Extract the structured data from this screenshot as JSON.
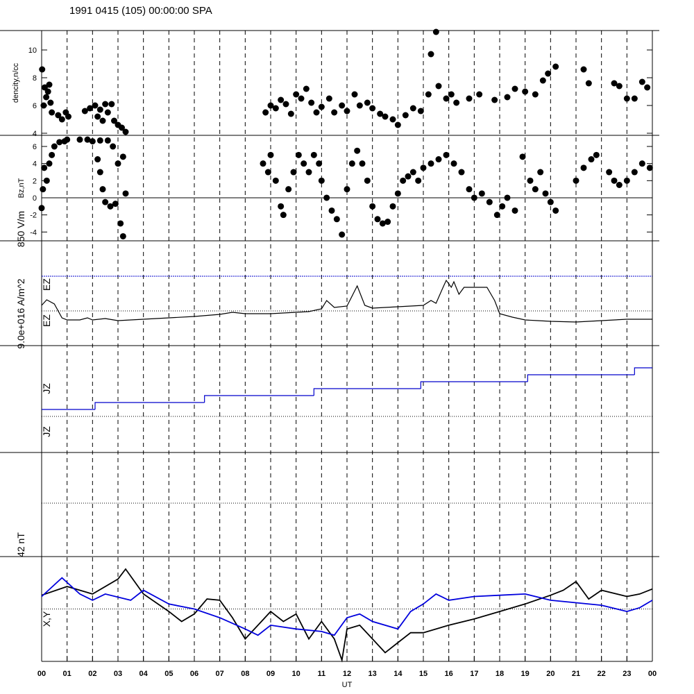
{
  "chart_data": [
    {
      "type": "scatter",
      "title": "1991 0415 (105) 00:00:00 SPA",
      "ylabel": "dencity,n/cc",
      "color": "#000000",
      "x": [
        0.02,
        0.08,
        0.12,
        0.18,
        0.25,
        0.3,
        0.35,
        0.4,
        0.65,
        0.8,
        0.95,
        1.05,
        1.7,
        1.9,
        2.1,
        2.3,
        2.5,
        2.2,
        2.4,
        2.6,
        2.75,
        2.85,
        3.0,
        3.15,
        3.3,
        8.8,
        9.0,
        9.2,
        9.4,
        9.6,
        9.8,
        10.0,
        10.2,
        10.4,
        10.6,
        10.8,
        11.0,
        11.3,
        11.5,
        11.8,
        12.0,
        12.3,
        12.5,
        12.8,
        13.0,
        13.3,
        13.5,
        13.8,
        14.0,
        14.3,
        14.6,
        14.9,
        15.2,
        15.3,
        15.5,
        15.6,
        15.9,
        16.1,
        16.3,
        16.8,
        17.2,
        17.8,
        18.3,
        18.6,
        19.0,
        19.4,
        19.7,
        19.9,
        20.2,
        21.3,
        21.5,
        22.5,
        22.7,
        23.0,
        23.3,
        23.6,
        23.8
      ],
      "values": [
        8.6,
        6.0,
        7.3,
        6.6,
        7.0,
        7.5,
        6.2,
        5.5,
        5.3,
        5.0,
        5.5,
        5.2,
        5.6,
        5.8,
        6.0,
        5.7,
        6.1,
        5.2,
        4.9,
        5.5,
        6.1,
        4.9,
        4.6,
        4.4,
        4.1,
        5.5,
        6.0,
        5.8,
        6.4,
        6.1,
        5.4,
        6.8,
        6.5,
        7.2,
        6.2,
        5.5,
        5.9,
        6.5,
        5.5,
        6.0,
        5.6,
        6.8,
        6.0,
        6.2,
        5.8,
        5.4,
        5.2,
        5.0,
        4.6,
        5.3,
        5.8,
        5.6,
        6.8,
        9.7,
        11.3,
        7.4,
        6.5,
        6.8,
        6.2,
        6.5,
        6.8,
        6.4,
        6.6,
        7.2,
        7.0,
        6.8,
        7.8,
        8.3,
        8.8,
        8.6,
        7.6,
        7.6,
        7.4,
        6.5,
        6.5,
        7.7,
        7.3
      ],
      "xlim": [
        0,
        24
      ],
      "ylim": [
        3.85,
        11.4
      ],
      "yticks": [
        4,
        6,
        8,
        10
      ]
    },
    {
      "type": "scatter",
      "ylabel": "Bz,nT",
      "color": "#000000",
      "x": [
        0,
        0.05,
        0.1,
        0.2,
        0.3,
        0.4,
        0.5,
        0.7,
        0.9,
        1,
        1.5,
        1.8,
        2,
        2.3,
        2.6,
        2.8,
        2.2,
        2.3,
        2.4,
        2.5,
        2.7,
        2.9,
        3,
        3.1,
        3.2,
        3.3,
        3.2,
        8.7,
        8.9,
        9,
        9.2,
        9.4,
        9.5,
        9.7,
        9.9,
        10.1,
        10.3,
        10.5,
        10.7,
        10.9,
        11,
        11.2,
        11.4,
        11.6,
        11.8,
        12,
        12.2,
        12.4,
        12.6,
        12.8,
        13,
        13.2,
        13.4,
        13.6,
        13.8,
        14,
        14.2,
        14.4,
        14.6,
        14.8,
        15,
        15.3,
        15.6,
        15.9,
        16.2,
        16.5,
        16.8,
        17,
        17.3,
        17.6,
        17.9,
        18.1,
        18.3,
        18.6,
        18.9,
        19.2,
        19.4,
        19.6,
        19.8,
        20,
        20.2,
        21,
        21.3,
        21.6,
        21.8,
        22.3,
        22.5,
        22.7,
        23,
        23.3,
        23.6,
        23.9
      ],
      "values": [
        -1.2,
        1,
        3.5,
        2,
        4,
        5,
        6,
        6.5,
        6.6,
        6.8,
        6.8,
        6.8,
        6.6,
        6.7,
        6.7,
        6,
        4.5,
        3,
        1,
        -0.5,
        -1,
        -0.7,
        4,
        -3,
        -4.5,
        0.5,
        4.8,
        4,
        3,
        5,
        2,
        -1,
        -2,
        1,
        3,
        5,
        4,
        3,
        5,
        4,
        2,
        0,
        -1.5,
        -2.5,
        -4.3,
        1,
        4,
        5.5,
        4,
        2,
        -1,
        -2.5,
        -3,
        -2.8,
        -1,
        0.5,
        2,
        2.5,
        3,
        2,
        3.5,
        4,
        4.5,
        5,
        4,
        3,
        1,
        0,
        0.5,
        -0.5,
        -2,
        -1,
        0,
        -1.5,
        4.8,
        2,
        1,
        3,
        0.5,
        -0.5,
        -1.5,
        2,
        3.5,
        4.5,
        5,
        3,
        2,
        1.5,
        2,
        3,
        4,
        3.5
      ],
      "xlim": [
        0,
        24
      ],
      "ylim": [
        -5.03,
        7.3
      ],
      "yticks": [
        -4,
        -2,
        0,
        2,
        4,
        6
      ],
      "reference_lines": [
        {
          "value": 0,
          "color": "#000000"
        }
      ]
    },
    {
      "type": "line",
      "labels": [
        "850 V/m",
        "EZ",
        "EZ"
      ],
      "color": "#000000",
      "x": [
        0,
        0.2,
        0.5,
        0.8,
        1,
        1.5,
        1.8,
        2,
        2.5,
        3,
        4,
        5,
        6,
        7,
        7.5,
        8,
        9,
        10,
        10.5,
        11,
        11.2,
        11.5,
        12,
        12.4,
        12.7,
        13,
        14,
        15,
        15.3,
        15.5,
        15.8,
        15.9,
        16.1,
        16.2,
        16.4,
        16.6,
        17.2,
        17.5,
        17.8,
        18,
        18.5,
        19,
        19.5,
        20,
        21,
        22,
        23,
        24
      ],
      "values": [
        136,
        272,
        170,
        -170,
        -221,
        -221,
        -170,
        -221,
        -187,
        -238,
        -204,
        -170,
        -136,
        -85,
        -34,
        -68,
        -68,
        -34,
        -17,
        51,
        255,
        85,
        119,
        612,
        136,
        68,
        102,
        136,
        255,
        187,
        612,
        748,
        578,
        714,
        408,
        578,
        578,
        578,
        255,
        -68,
        -153,
        -221,
        -238,
        -255,
        -272,
        -238,
        -204,
        -204
      ],
      "xlim": [
        0,
        24
      ],
      "ylim": [
        -850,
        1717
      ],
      "reference_lines": [
        {
          "value": 0,
          "color": "#000000"
        },
        {
          "value": 850,
          "color": "#0000cc"
        }
      ]
    },
    {
      "type": "step",
      "labels": [
        "9.0e+016 A/m^2",
        "JZ",
        "JZ"
      ],
      "color": "#0000cc",
      "x": [
        0,
        2.1,
        6.4,
        10.7,
        14.9,
        19.1,
        23.3
      ],
      "values": [
        1,
        2,
        3,
        4,
        5,
        6,
        7
      ],
      "xlim": [
        0,
        24
      ],
      "ylim": [
        0,
        10.2
      ],
      "reference_lines": [
        {
          "value": 0,
          "color": "#000000"
        }
      ]
    },
    {
      "type": "line",
      "labels": [
        "42 nT",
        "X,Y"
      ],
      "xlabel": "UT",
      "series": [
        {
          "color": "#000000",
          "x": [
            0,
            1,
            2,
            3,
            3.3,
            4,
            5,
            5.5,
            6,
            6.5,
            7,
            7.5,
            8,
            8.5,
            9,
            9.5,
            10,
            10.5,
            11,
            11.5,
            11.8,
            12,
            12.5,
            13,
            13.5,
            14,
            14.5,
            15,
            16,
            17,
            18,
            19,
            20,
            20.5,
            21,
            21.5,
            22,
            23,
            23.5,
            24
          ],
          "values": [
            11,
            18,
            12,
            24,
            32,
            12,
            -2,
            -10,
            -4,
            8,
            7,
            -7,
            -24,
            -13,
            -2,
            -10,
            -4,
            -24,
            -10,
            -24,
            -41,
            -16,
            -13,
            -24,
            -35,
            -27,
            -19,
            -19,
            -13,
            -8,
            -2,
            4,
            11,
            15,
            22,
            8,
            15,
            10,
            12,
            16
          ]
        },
        {
          "color": "#0000dd",
          "x": [
            0,
            0.8,
            1.5,
            2,
            2.5,
            3.5,
            4,
            5,
            6,
            7,
            8,
            8.5,
            9,
            10,
            11,
            11.5,
            12,
            12.5,
            13,
            14,
            14.5,
            15,
            15.5,
            16,
            17,
            18,
            19,
            20,
            21,
            22,
            23,
            23.5,
            24
          ],
          "values": [
            10,
            25,
            12,
            7,
            12,
            7,
            15,
            4,
            0,
            -7,
            -16,
            -21,
            -13,
            -16,
            -18,
            -21,
            -7,
            -4,
            -10,
            -16,
            -2,
            4,
            12,
            7,
            10,
            11,
            12,
            7,
            5,
            3,
            -2,
            1,
            7
          ]
        }
      ],
      "xlim": [
        0,
        24
      ],
      "ylim": [
        -42,
        42
      ],
      "reference_lines": [
        {
          "value": 0,
          "color": "#000000"
        }
      ],
      "xticks": [
        {
          "value": 0,
          "label": "00"
        },
        {
          "value": 1,
          "label": "01"
        },
        {
          "value": 2,
          "label": "02"
        },
        {
          "value": 3,
          "label": "03"
        },
        {
          "value": 4,
          "label": "04"
        },
        {
          "value": 5,
          "label": "05"
        },
        {
          "value": 6,
          "label": "06"
        },
        {
          "value": 7,
          "label": "07"
        },
        {
          "value": 8,
          "label": "08"
        },
        {
          "value": 9,
          "label": "09"
        },
        10,
        11,
        12,
        13,
        14,
        15,
        16,
        17,
        18,
        19,
        20,
        21,
        22,
        23,
        {
          "value": 24,
          "label": "00"
        }
      ]
    }
  ]
}
